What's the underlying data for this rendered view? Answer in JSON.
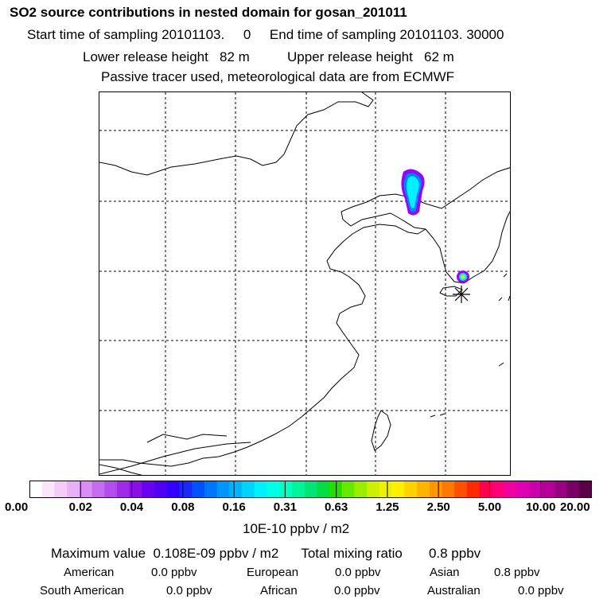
{
  "header": {
    "title": "SO2 source contributions in nested domain for gosan_201011",
    "sampling_line": "Start time of sampling 20101103.     0     End time of sampling 20101103. 30000",
    "release_line": "Lower release height   82 m          Upper release height   62 m",
    "tracer_line": "Passive tracer used, meteorological data are from ECMWF"
  },
  "colorbar": {
    "tick_labels": [
      "0.00",
      "0.02",
      "0.04",
      "0.08",
      "0.16",
      "0.31",
      "0.63",
      "1.25",
      "2.50",
      "5.00",
      "10.00",
      "20.00"
    ],
    "colors": [
      "#ffffff",
      "#fae6fa",
      "#f2ccf7",
      "#e9b0f5",
      "#d88ef2",
      "#c66cef",
      "#b44bec",
      "#a02ae8",
      "#8a0ee6",
      "#6b00f0",
      "#4e00f5",
      "#3300ff",
      "#1a2aff",
      "#0052ff",
      "#0076ff",
      "#0096ff",
      "#00b4ff",
      "#00d4ff",
      "#00f0ff",
      "#00ffe6",
      "#00ffc0",
      "#00f59a",
      "#00e676",
      "#00dd44",
      "#22e000",
      "#66e800",
      "#99ee00",
      "#ccf000",
      "#eef000",
      "#ffee00",
      "#ffd200",
      "#ffb400",
      "#ff9600",
      "#ff7800",
      "#ff5000",
      "#ff2a00",
      "#ff0050",
      "#ff0078",
      "#f000a0",
      "#e000b4",
      "#cc00aa",
      "#b40096",
      "#9a0082",
      "#7a0066",
      "#5a004a"
    ],
    "units": "10E-10 ppbv / m2"
  },
  "summary": {
    "max_line": "Maximum value  0.108E-09 ppbv / m2      Total mixing ratio       0.8 ppbv",
    "regions": [
      {
        "name": "American",
        "value": "0.0 ppbv"
      },
      {
        "name": "European",
        "value": "0.0 ppbv"
      },
      {
        "name": "Asian",
        "value": "0.8 ppbv"
      },
      {
        "name": "South American",
        "value": "0.0 ppbv"
      },
      {
        "name": "African",
        "value": "0.0 ppbv"
      },
      {
        "name": "Australian",
        "value": "0.0 ppbv"
      }
    ]
  },
  "map": {
    "receptor": "gosan",
    "plume_colors": {
      "outer": "#9a00ff",
      "mid": "#0080ff",
      "core": "#00f0ff",
      "peak": "#ccf000"
    }
  }
}
